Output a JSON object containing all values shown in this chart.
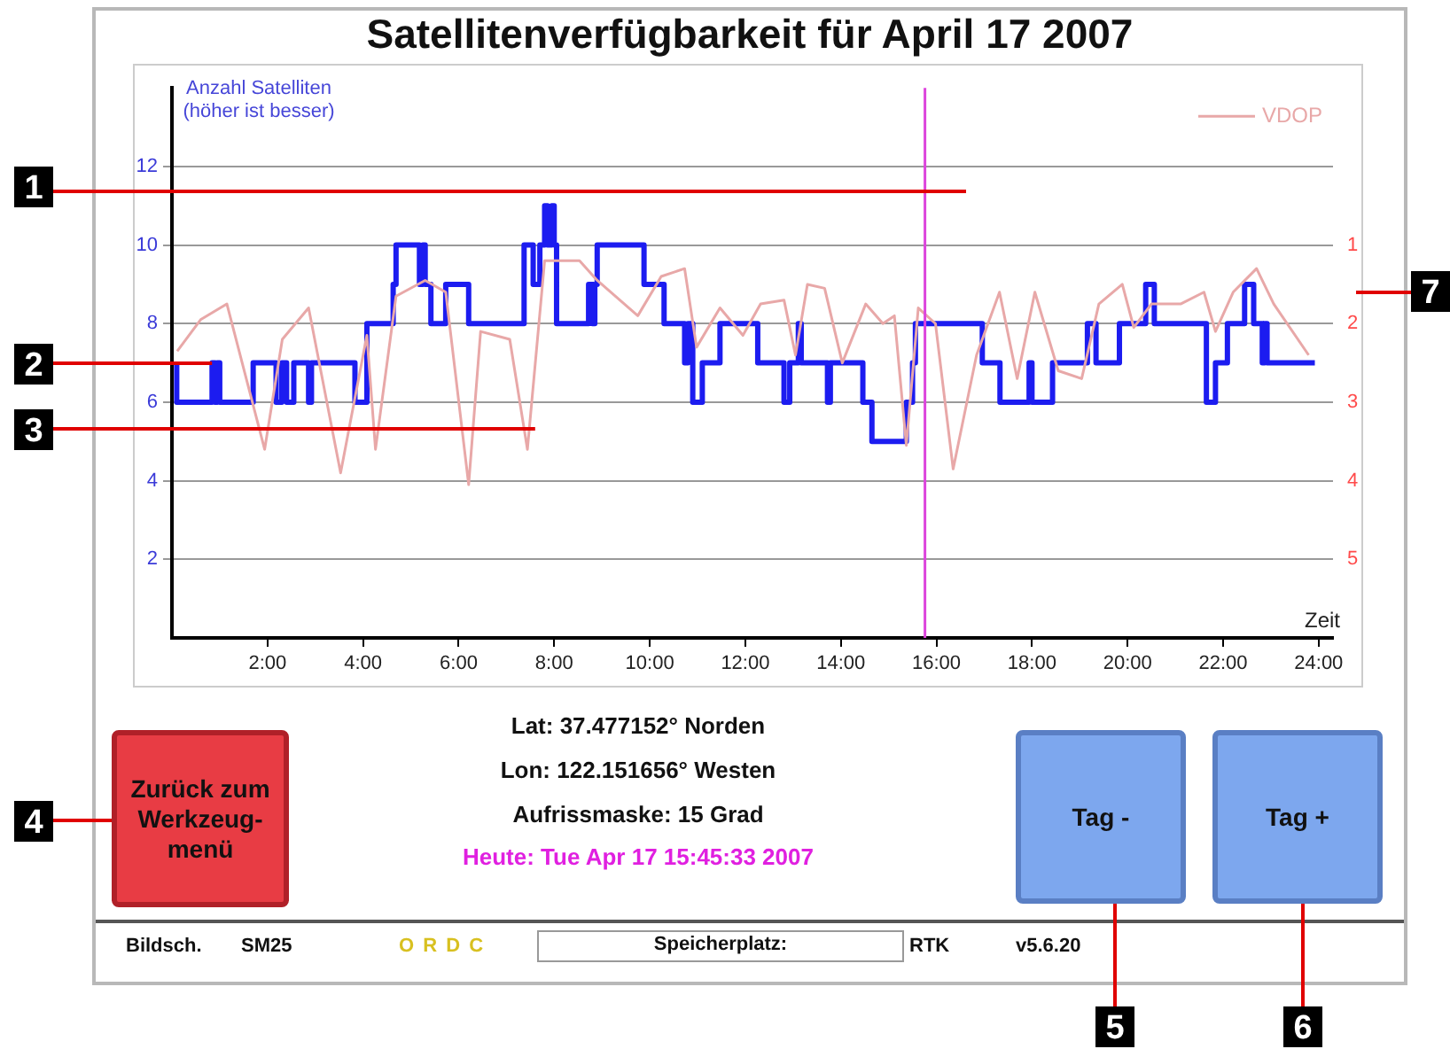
{
  "chart_data": {
    "type": "step",
    "title": "Satellitenverfügbarkeit für April 17 2007",
    "xlabel": "Zeit",
    "ylabel": "Anzahl Satelliten (höher ist besser)",
    "xlim": [
      0,
      24.3
    ],
    "xticks": [
      {
        "value": 2,
        "label": "2:00"
      },
      {
        "value": 4,
        "label": "4:00"
      },
      {
        "value": 6,
        "label": "6:00"
      },
      {
        "value": 8,
        "label": "8:00"
      },
      {
        "value": 10,
        "label": "10:00"
      },
      {
        "value": 12,
        "label": "12:00"
      },
      {
        "value": 14,
        "label": "14:00"
      },
      {
        "value": 16,
        "label": "16:00"
      },
      {
        "value": 18,
        "label": "18:00"
      },
      {
        "value": 20,
        "label": "20:00"
      },
      {
        "value": 22,
        "label": "22:00"
      },
      {
        "value": 24,
        "label": "24:00"
      }
    ],
    "ylim": [
      0,
      14
    ],
    "yticks": [
      2,
      4,
      6,
      8,
      10,
      12
    ],
    "y2lim": [
      6,
      -1
    ],
    "y2ticks": [
      1,
      2,
      3,
      4,
      5
    ],
    "grid": "y",
    "legend": "top right",
    "series": [
      {
        "color": "#1c1cf0",
        "x": [
          0.1,
          0.84,
          0.9,
          0.95,
          1.0,
          1.7,
          2.18,
          2.3,
          2.4,
          2.55,
          2.86,
          2.92,
          3.83,
          4.08,
          4.63,
          4.69,
          5.18,
          5.25,
          5.3,
          5.42,
          5.73,
          6.21,
          7.37,
          7.56,
          7.7,
          7.8,
          7.86,
          7.95,
          8.0,
          8.05,
          8.72,
          8.8,
          8.85,
          8.9,
          9.88,
          10.3,
          10.73,
          10.8,
          10.9,
          11.1,
          11.47,
          12.26,
          12.81,
          12.93,
          13.11,
          13.17,
          13.72,
          13.78,
          14.46,
          14.65,
          15.37,
          15.5,
          15.56,
          16.96,
          17.33,
          17.94,
          18.0,
          18.43,
          19.16,
          19.34,
          19.83,
          20.38,
          20.56,
          21.65,
          21.84,
          22.09,
          22.45,
          22.64,
          22.82,
          22.87,
          22.92,
          23.0,
          23.92
        ],
        "values": [
          7,
          6,
          7,
          6,
          7,
          6,
          7,
          6,
          7,
          6,
          7,
          6,
          7,
          6,
          8,
          9,
          10,
          9,
          10,
          9,
          8,
          9,
          8,
          10,
          9,
          10,
          11,
          10,
          11,
          10,
          8,
          9,
          8,
          9,
          10,
          9,
          8,
          7,
          8,
          6,
          7,
          8,
          7,
          6,
          7,
          8,
          7,
          6,
          7,
          6,
          5,
          6,
          7,
          8,
          7,
          6,
          7,
          6,
          7,
          8,
          7,
          8,
          9,
          8,
          6,
          7,
          8,
          9,
          8,
          7,
          8,
          7,
          7
        ]
      },
      {
        "type": "line",
        "axis": "y2",
        "name": "VDOP",
        "color": "#e8a8a8",
        "x": [
          0.11,
          0.6,
          1.15,
          1.94,
          2.31,
          2.86,
          3.53,
          4.08,
          4.26,
          4.69,
          5.3,
          5.73,
          6.21,
          6.46,
          7.07,
          7.44,
          7.8,
          8.53,
          8.9,
          9.75,
          10.24,
          10.73,
          10.98,
          11.47,
          11.95,
          12.32,
          12.81,
          13.05,
          13.3,
          13.66,
          14.03,
          14.52,
          14.88,
          15.12,
          15.37,
          15.62,
          15.98,
          16.35,
          16.84,
          17.32,
          17.69,
          18.06,
          18.55,
          19.04,
          19.4,
          19.89,
          20.13,
          20.5,
          21.11,
          21.6,
          21.84,
          22.21,
          22.7,
          23.06,
          23.79
        ],
        "values": [
          2.35,
          1.95,
          1.75,
          3.6,
          2.2,
          1.8,
          3.9,
          2.15,
          3.6,
          1.65,
          1.45,
          1.6,
          4.05,
          2.1,
          2.2,
          3.6,
          1.2,
          1.2,
          1.45,
          1.9,
          1.4,
          1.3,
          2.3,
          1.8,
          2.15,
          1.75,
          1.7,
          2.4,
          1.5,
          1.55,
          2.5,
          1.75,
          2.0,
          1.9,
          3.55,
          1.8,
          2.0,
          3.85,
          2.4,
          1.6,
          2.7,
          1.6,
          2.6,
          2.7,
          1.75,
          1.5,
          2.05,
          1.75,
          1.75,
          1.6,
          2.1,
          1.6,
          1.3,
          1.75,
          2.4
        ]
      }
    ],
    "ref_lines": [
      {
        "axis": "x",
        "value": 15.76,
        "color": "#dd44dd"
      }
    ],
    "annotations": [
      "1",
      {
        "text": "2",
        "x": 0.84,
        "y": 7
      },
      {
        "text": "3",
        "x": 7.6,
        "y": 5.3
      },
      "4",
      "5",
      "6",
      "7",
      "Zurück zum Werkzeug-menü",
      "Lat: 37.477152° Norden",
      "Lon: 122.151656° Westen",
      "Aufrissmaske: 15 Grad",
      "Heute: Tue Apr 17 15:45:33 2007",
      "Tag -",
      "Tag +",
      "Bildsch.",
      "SM25",
      "O R D C",
      "Speicherplatz:",
      "RTK",
      "v5.6.20"
    ]
  }
}
